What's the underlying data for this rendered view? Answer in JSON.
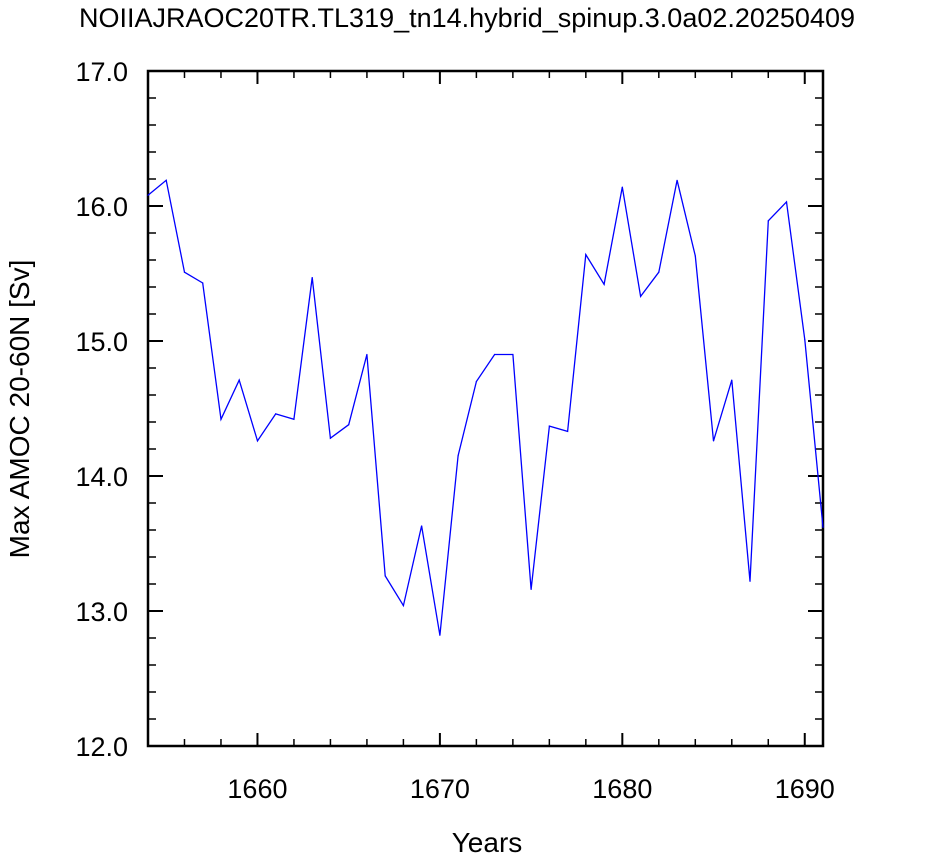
{
  "chart_data": {
    "type": "line",
    "title": "NOIIAJRAOC20TR.TL319_tn14.hybrid_spinup.3.0a02.20250409",
    "xlabel": "Years",
    "ylabel": "Max AMOC 20-60N [Sv]",
    "xlim": [
      1654,
      1691
    ],
    "ylim": [
      12.0,
      17.0
    ],
    "x_ticks": [
      1660,
      1670,
      1680,
      1690
    ],
    "y_ticks": [
      "12.0",
      "13.0",
      "14.0",
      "15.0",
      "16.0",
      "17.0"
    ],
    "x_tick_labels": [
      "1660",
      "1670",
      "1680",
      "1690"
    ],
    "grid": false,
    "series": [
      {
        "color": "#0000ff",
        "x": [
          1654,
          1655,
          1656,
          1657,
          1658,
          1659,
          1660,
          1661,
          1662,
          1663,
          1664,
          1665,
          1666,
          1667,
          1668,
          1669,
          1670,
          1671,
          1672,
          1673,
          1674,
          1675,
          1676,
          1677,
          1678,
          1679,
          1680,
          1681,
          1682,
          1683,
          1684,
          1685,
          1686,
          1687,
          1688,
          1689,
          1690,
          1691
        ],
        "values": [
          16.08,
          16.19,
          15.51,
          15.43,
          14.42,
          14.71,
          14.26,
          14.46,
          14.42,
          15.47,
          14.28,
          14.38,
          14.9,
          13.26,
          13.04,
          13.63,
          12.82,
          14.15,
          14.7,
          14.9,
          14.9,
          13.16,
          14.37,
          14.33,
          15.64,
          15.42,
          16.14,
          15.33,
          15.51,
          16.19,
          15.63,
          14.26,
          14.71,
          13.22,
          15.89,
          16.03,
          15.01,
          13.62
        ]
      }
    ]
  }
}
